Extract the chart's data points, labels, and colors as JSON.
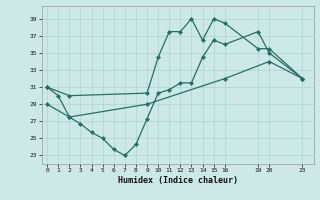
{
  "xlabel": "Humidex (Indice chaleur)",
  "background_color": "#cce9e8",
  "grid_color": "#aad4d3",
  "line_color": "#276e65",
  "xlim": [
    -0.5,
    24
  ],
  "ylim": [
    22,
    40.5
  ],
  "yticks": [
    23,
    25,
    27,
    29,
    31,
    33,
    35,
    37,
    39
  ],
  "xticks": [
    0,
    1,
    2,
    3,
    4,
    5,
    6,
    7,
    8,
    9,
    10,
    11,
    12,
    13,
    14,
    15,
    16,
    19,
    20,
    23
  ],
  "line1_x": [
    0,
    1,
    2,
    3,
    4,
    5,
    6,
    7,
    8,
    9,
    10,
    11,
    12,
    13,
    14,
    15,
    16,
    19,
    20,
    23
  ],
  "line1_y": [
    31,
    30,
    27.5,
    26.7,
    25.7,
    25,
    23.7,
    23.0,
    24.3,
    27.3,
    30.3,
    30.7,
    31.5,
    31.5,
    34.5,
    36.5,
    36,
    37.5,
    35,
    32
  ],
  "line2_x": [
    0,
    2,
    9,
    10,
    11,
    12,
    13,
    14,
    15,
    16,
    19,
    20,
    23
  ],
  "line2_y": [
    31,
    30,
    30.3,
    34.5,
    37.5,
    37.5,
    39,
    36.5,
    39,
    38.5,
    35.5,
    35.5,
    32
  ],
  "line3_x": [
    0,
    2,
    9,
    16,
    20,
    23
  ],
  "line3_y": [
    29,
    27.5,
    29,
    32,
    34,
    32
  ]
}
